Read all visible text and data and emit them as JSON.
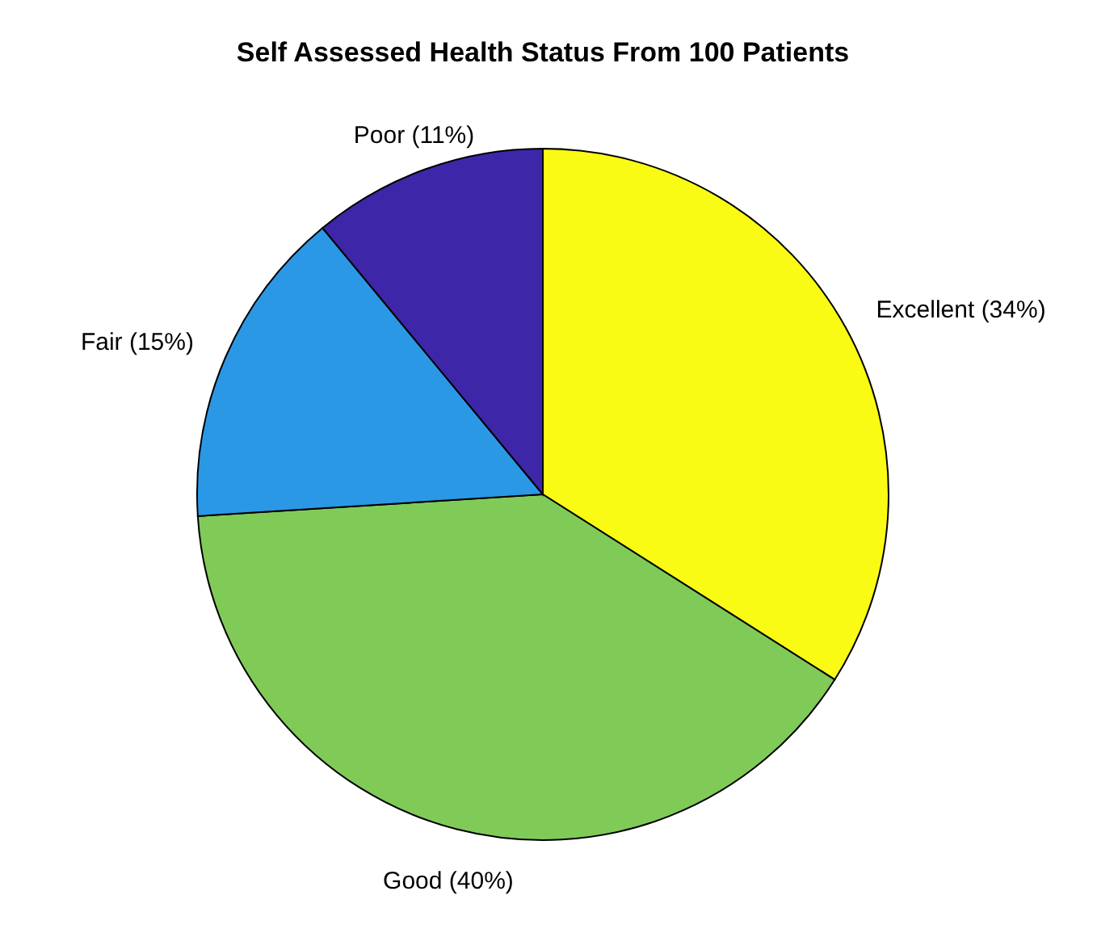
{
  "chart_data": {
    "type": "pie",
    "title": "Self Assessed Health Status From 100 Patients",
    "categories": [
      "Excellent (34%)",
      "Good (40%)",
      "Fair (15%)",
      "Poor (11%)"
    ],
    "values": [
      34,
      40,
      15,
      11
    ],
    "colors": [
      "#f9fb15",
      "#80cb58",
      "#2b98e6",
      "#3e26a8"
    ]
  }
}
